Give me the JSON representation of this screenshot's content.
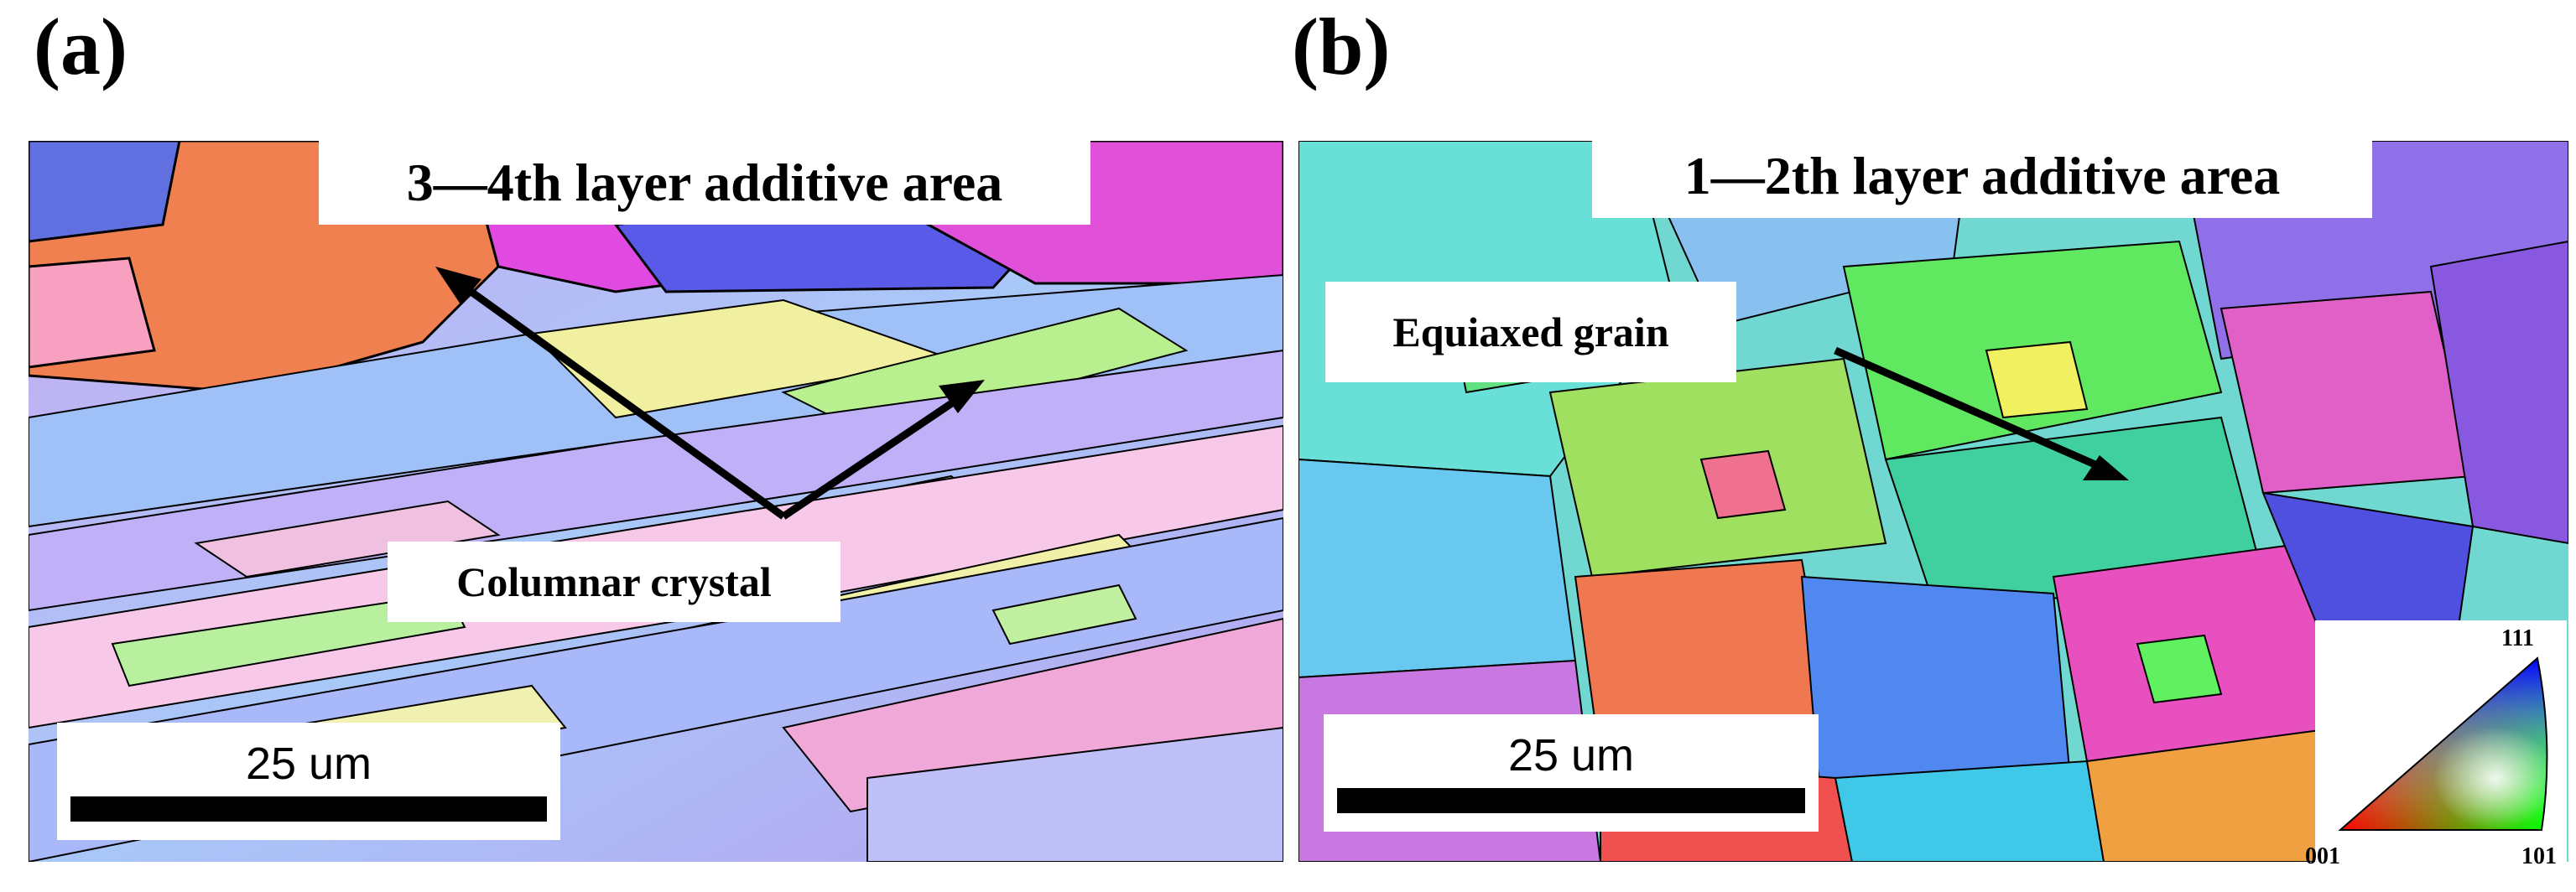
{
  "panel_a": {
    "letter": "(a)",
    "title": "3—4th layer additive area",
    "annotation": "Columnar crystal",
    "scale_label": "25 um"
  },
  "panel_b": {
    "letter": "(b)",
    "title": "1—2th layer additive area",
    "annotation": "Equiaxed grain",
    "scale_label": "25 um"
  },
  "legend": {
    "top_label": "111",
    "left_label": "001",
    "right_label": "101",
    "colors": {
      "001": "#ff0000",
      "101": "#00ff00",
      "111": "#0000ff"
    }
  }
}
